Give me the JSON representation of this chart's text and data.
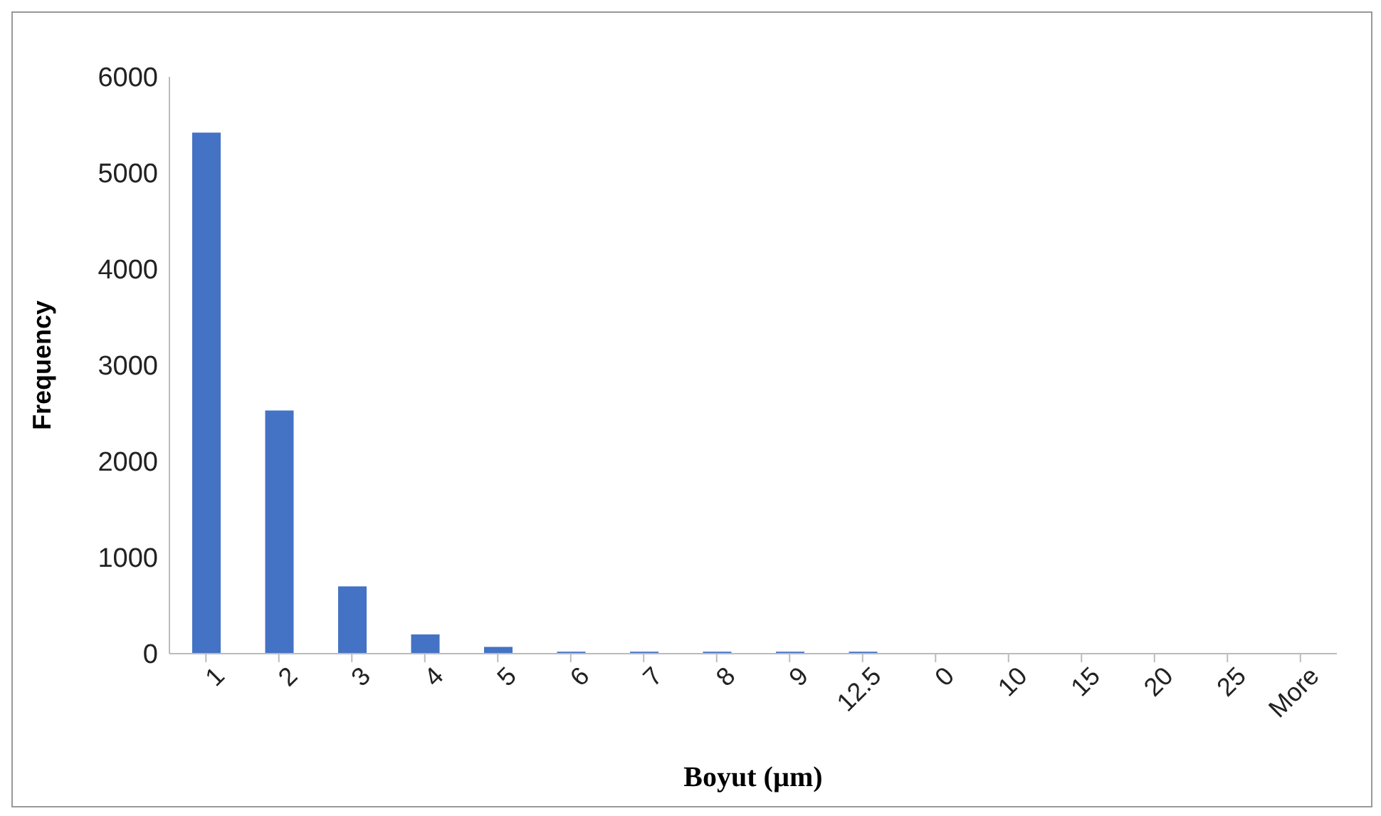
{
  "chart_data": {
    "type": "bar",
    "xlabel": "Boyut (µm)",
    "ylabel": "Frequency",
    "categories": [
      "1",
      "2",
      "3",
      "4",
      "5",
      "6",
      "7",
      "8",
      "9",
      "12.5",
      "0",
      "10",
      "15",
      "20",
      "25",
      "More"
    ],
    "values": [
      5420,
      2530,
      700,
      200,
      70,
      20,
      20,
      20,
      20,
      20,
      0,
      0,
      0,
      0,
      0,
      0
    ],
    "color": "#4472c4",
    "ylim": [
      0,
      6000
    ],
    "yticks": [
      0,
      1000,
      2000,
      3000,
      4000,
      5000,
      6000
    ],
    "grid": false
  }
}
